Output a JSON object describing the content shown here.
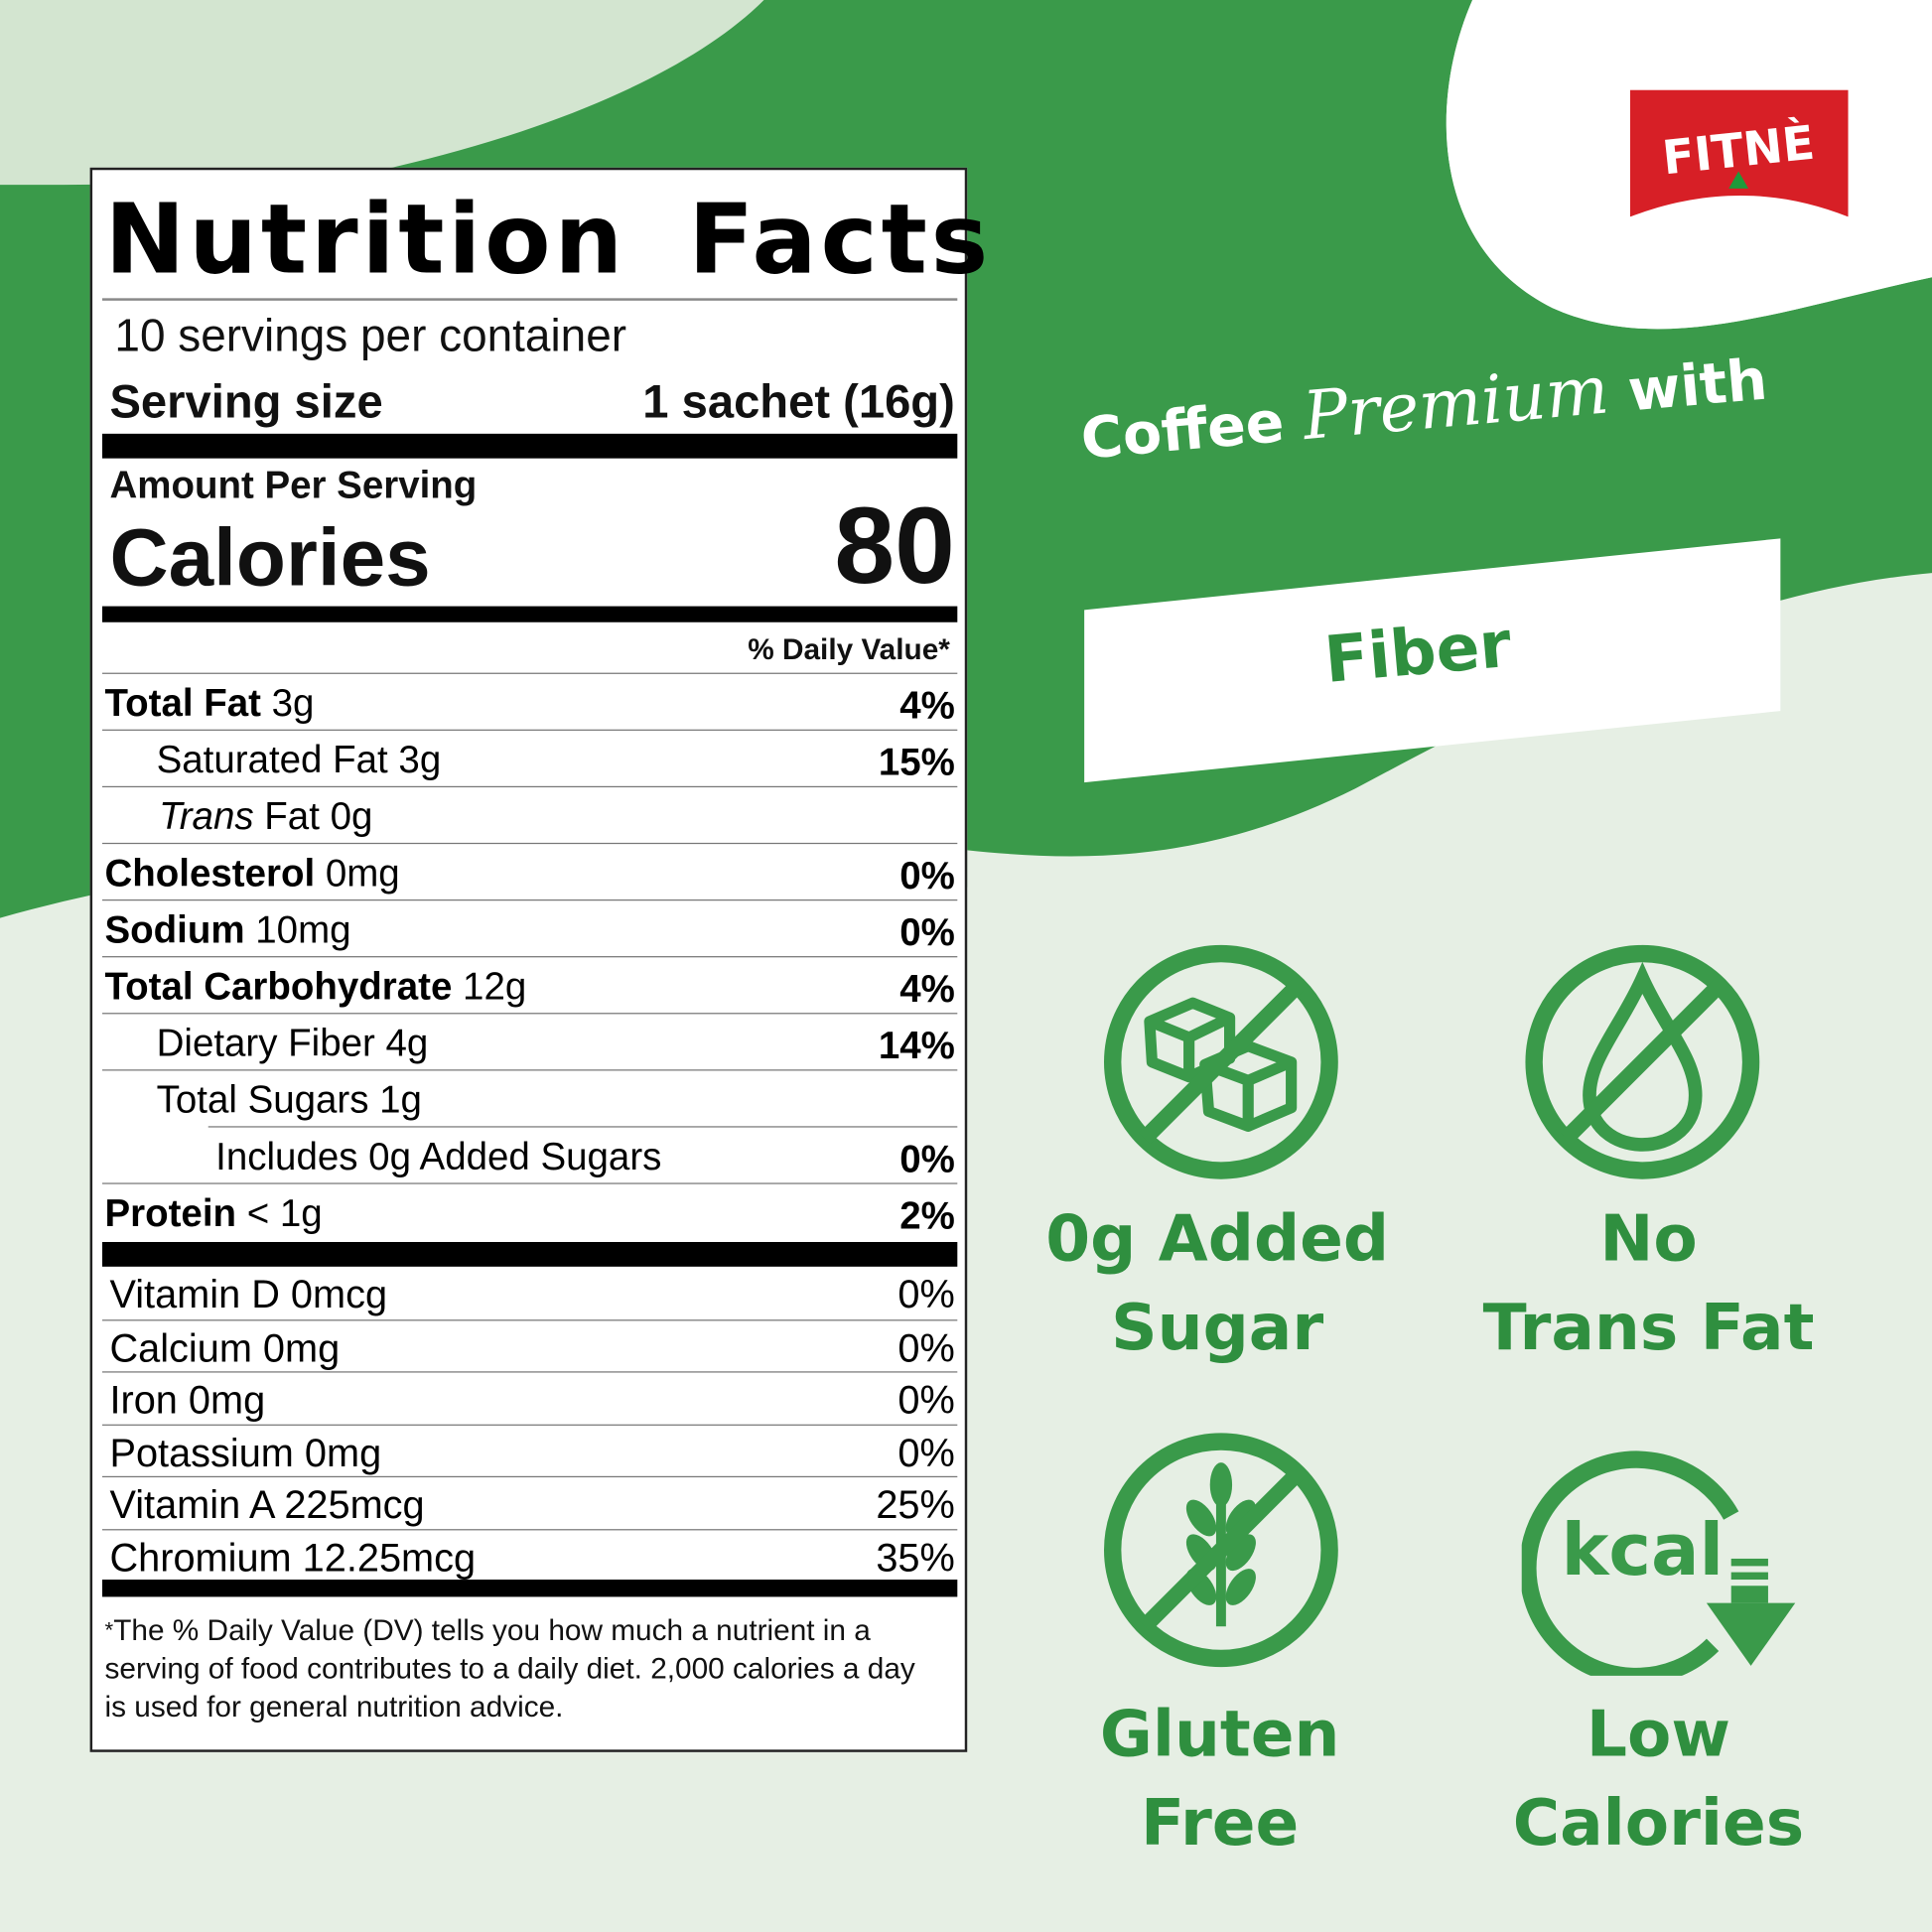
{
  "brand": {
    "logo_text": "FITNÈ",
    "logo_color": "#d71f26"
  },
  "colors": {
    "green": "#3a9a4a",
    "light_green": "#d3e5d0",
    "pale_green": "#e6efe4"
  },
  "label": {
    "title": "Nutrition Facts",
    "servings": "10 servings per container",
    "serving_size_label": "Serving size",
    "serving_size_value": "1 sachet (16g)",
    "amount_per_serving": "Amount Per Serving",
    "calories_label": "Calories",
    "calories_value": "80",
    "dv_header": "% Daily Value*",
    "nutrients": [
      {
        "name": "Total Fat",
        "amount": "3g",
        "dv": "4%"
      },
      {
        "name": "Saturated Fat 3g",
        "amount": "",
        "dv": "15%"
      },
      {
        "name": "Trans",
        "amount": "Fat 0g",
        "dv": ""
      },
      {
        "name": "Cholesterol",
        "amount": "0mg",
        "dv": "0%"
      },
      {
        "name": "Sodium",
        "amount": "10mg",
        "dv": "0%"
      },
      {
        "name": "Total Carbohydrate",
        "amount": "12g",
        "dv": "4%"
      },
      {
        "name": "Dietary Fiber 4g",
        "amount": "",
        "dv": "14%"
      },
      {
        "name": "Total Sugars 1g",
        "amount": "",
        "dv": ""
      },
      {
        "name": "Includes 0g Added Sugars",
        "amount": "",
        "dv": "0%"
      },
      {
        "name": "Protein",
        "amount": "< 1g",
        "dv": "2%"
      }
    ],
    "vitamins": [
      {
        "name": "Vitamin D 0mcg",
        "dv": "0%"
      },
      {
        "name": "Calcium 0mg",
        "dv": "0%"
      },
      {
        "name": "Iron 0mg",
        "dv": "0%"
      },
      {
        "name": "Potassium 0mg",
        "dv": "0%"
      },
      {
        "name": "Vitamin A 225mcg",
        "dv": "25%"
      },
      {
        "name": "Chromium 12.25mcg",
        "dv": "35%"
      }
    ],
    "footnote_star": "*",
    "footnote": "The % Daily Value (DV) tells you how much a nutrient in a serving of food contributes to a daily diet. 2,000 calories a day is used for general nutrition advice."
  },
  "tagline": {
    "part1": "Coffee",
    "part2": "Premium",
    "part3": "with",
    "highlight": "Fiber"
  },
  "claims": [
    {
      "icon": "no-sugar-cubes-icon",
      "line1": "0g Added",
      "line2": "Sugar"
    },
    {
      "icon": "no-fat-drop-icon",
      "line1": "No",
      "line2": "Trans Fat"
    },
    {
      "icon": "gluten-free-wheat-icon",
      "line1": "Gluten",
      "line2": "Free"
    },
    {
      "icon": "low-kcal-icon",
      "line1": "Low",
      "line2": "Calories",
      "icon_text": "kcal"
    }
  ]
}
